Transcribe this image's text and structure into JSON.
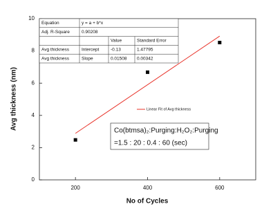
{
  "chart_data": {
    "type": "scatter",
    "x_label": "No of Cycles",
    "y_label": "Avg thickness (nm)",
    "x": [
      200,
      400,
      600
    ],
    "series": [
      {
        "name": "Avg thickness",
        "color": "#000000",
        "values": [
          2.48,
          6.68,
          8.52
        ]
      },
      {
        "name": "Linear Fit of Avg thickness",
        "type": "line",
        "color": "#e8332a",
        "x": [
          200,
          600
        ],
        "values": [
          2.886,
          8.918
        ]
      }
    ],
    "xlim": [
      100,
      700
    ],
    "xticks": [
      200,
      400,
      600
    ],
    "ylim": [
      0,
      10
    ],
    "yticks": [
      0,
      2,
      4,
      6,
      8,
      10
    ],
    "fit_table": {
      "rows": [
        [
          "Equation",
          "y = a + b*x"
        ],
        [
          "Adj. R-Square",
          "0.90208"
        ],
        [
          "",
          "",
          "Value",
          "Standard Error"
        ],
        [
          "Avg thickness",
          "Intercept",
          "-0.13",
          "1.47795"
        ],
        [
          "Avg thickness",
          "Slope",
          "0.01508",
          "0.00342"
        ]
      ]
    },
    "annotation": [
      "Co(btmsa)₂:Purging:H₂O₂:Purging",
      "=1.5 : 20 : 0.4 : 60 (sec)"
    ]
  }
}
